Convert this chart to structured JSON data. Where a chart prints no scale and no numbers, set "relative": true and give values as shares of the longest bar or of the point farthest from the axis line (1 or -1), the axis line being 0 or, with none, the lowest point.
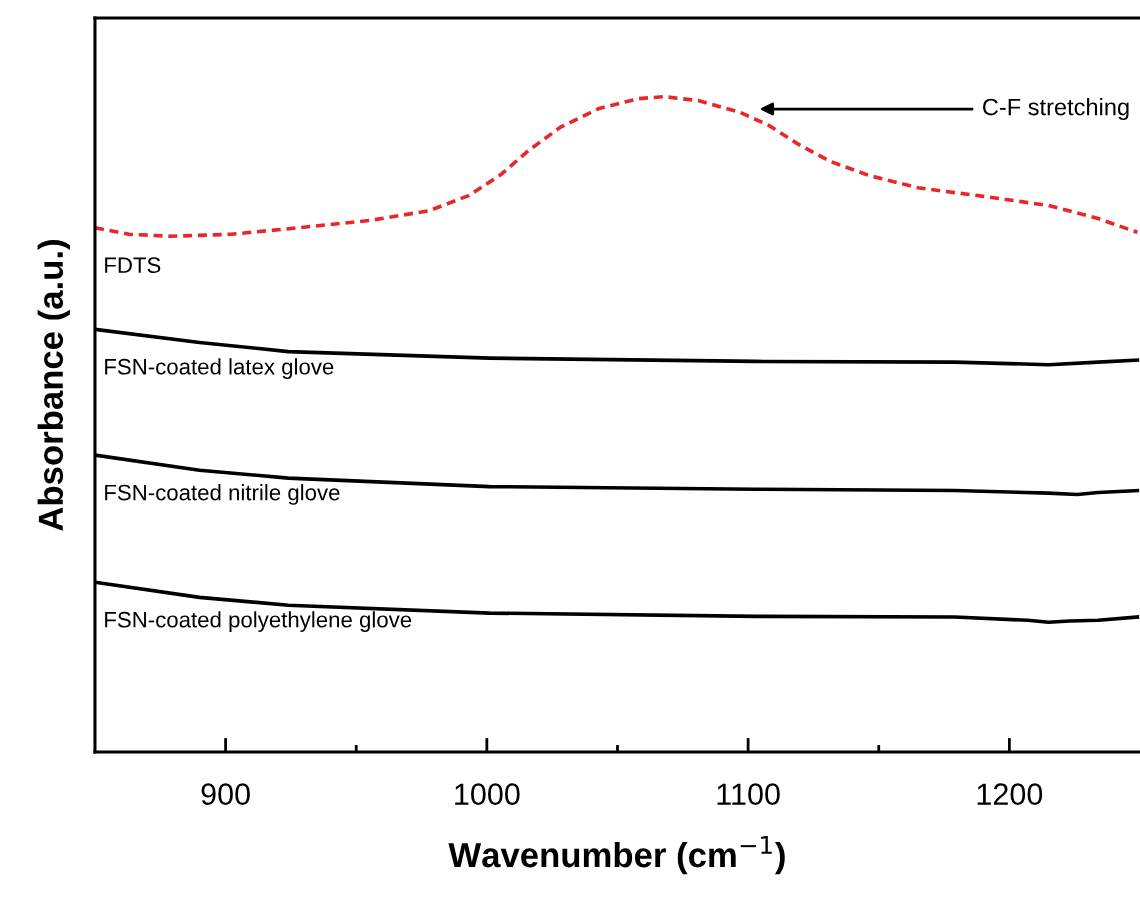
{
  "chart_data": {
    "type": "line",
    "relative": true,
    "xlabel": "Wavenumber (cm$^{−1}$)",
    "ylabel": "Absorbance (a.u.)",
    "xlim": [
      850,
      1250
    ],
    "xticks": [
      900,
      {
        "value": 950,
        "label": null
      },
      1000,
      {
        "value": 1050,
        "label": null
      },
      1100,
      {
        "value": 1150,
        "label": null
      },
      1200
    ],
    "tick_labels": "x",
    "grid": false,
    "legend": false,
    "marker": "none",
    "annotations": [
      "C-F stretching"
    ],
    "series": [
      {
        "name": "FDTS",
        "color": "#e8272a",
        "line_style": "dashed",
        "x": [
          850,
          863,
          879,
          902,
          928,
          955,
          978,
          993,
          1005,
          1016,
          1028,
          1043,
          1058,
          1068,
          1081,
          1097,
          1108,
          1119,
          1131,
          1146,
          1165,
          1188,
          1215,
          1234,
          1249
        ],
        "values": [
          0.8,
          0.79,
          0.787,
          0.79,
          0.8,
          0.811,
          0.826,
          0.849,
          0.88,
          0.918,
          0.953,
          0.982,
          0.997,
          1.0,
          0.994,
          0.976,
          0.956,
          0.928,
          0.902,
          0.88,
          0.861,
          0.849,
          0.834,
          0.814,
          0.793
        ]
      },
      {
        "name": "FSN-coated latex glove",
        "color": "#000000",
        "line_style": "solid",
        "x": [
          850,
          890,
          924,
          1001,
          1103,
          1179,
          1215,
          1234,
          1249
        ],
        "values": [
          0.645,
          0.625,
          0.611,
          0.601,
          0.596,
          0.595,
          0.591,
          0.595,
          0.598
        ]
      },
      {
        "name": "FSN-coated nitrile glove",
        "color": "#000000",
        "line_style": "solid",
        "x": [
          850,
          890,
          924,
          1001,
          1103,
          1179,
          1215,
          1226,
          1234,
          1249
        ],
        "values": [
          0.453,
          0.43,
          0.418,
          0.405,
          0.401,
          0.399,
          0.395,
          0.393,
          0.396,
          0.399
        ]
      },
      {
        "name": "FSN-coated polyethylene glove",
        "color": "#000000",
        "line_style": "solid",
        "x": [
          850,
          890,
          924,
          1001,
          1103,
          1179,
          1207,
          1215,
          1223,
          1234,
          1249
        ],
        "values": [
          0.259,
          0.236,
          0.224,
          0.212,
          0.207,
          0.206,
          0.201,
          0.198,
          0.2,
          0.201,
          0.206
        ]
      }
    ]
  }
}
